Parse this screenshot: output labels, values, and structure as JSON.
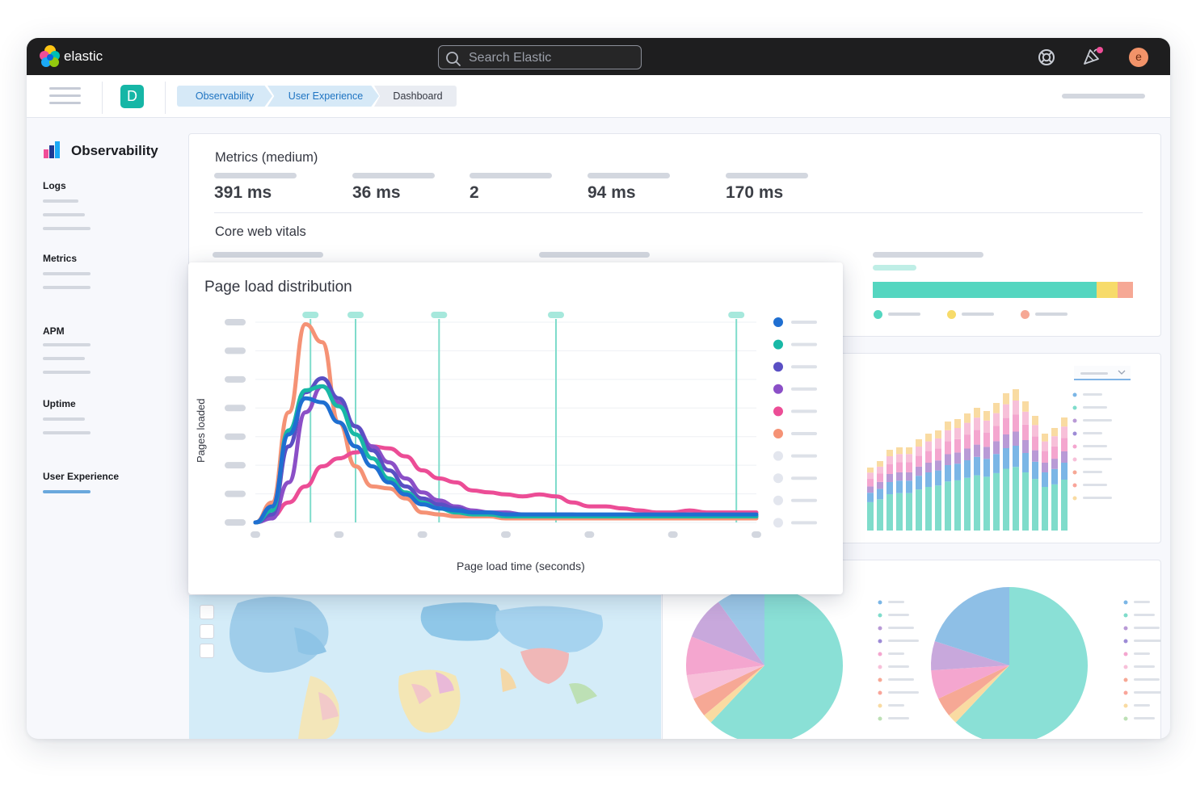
{
  "header": {
    "brand": "elastic",
    "search_placeholder": "Search Elastic",
    "avatar_initial": "e",
    "icons": [
      "elastic-logo-icon",
      "search-icon",
      "help-icon",
      "newsfeed-icon",
      "user-avatar"
    ]
  },
  "subnav": {
    "space_initial": "D",
    "breadcrumbs": [
      "Observability",
      "User Experience",
      "Dashboard"
    ]
  },
  "sidebar": {
    "title": "Observability",
    "sections": [
      {
        "label": "Logs"
      },
      {
        "label": "Metrics"
      },
      {
        "label": "APM"
      },
      {
        "label": "Uptime"
      },
      {
        "label": "User Experience",
        "active": true
      }
    ]
  },
  "metrics": {
    "title": "Metrics (medium)",
    "values": [
      "391 ms",
      "36 ms",
      "2",
      "94 ms",
      "170 ms"
    ]
  },
  "core_web_vitals": {
    "title": "Core web vitals",
    "bar_fractions": {
      "good": 0.86,
      "needs_improvement": 0.08,
      "poor": 0.06
    }
  },
  "page_load": {
    "title": "Page load distribution",
    "ylabel": "Pages loaded",
    "xlabel": "Page load time (seconds)"
  },
  "colors": {
    "teal": "#54d6c0",
    "blue": "#1f6fd1",
    "purple": "#5a4fc4",
    "violet": "#8b4fc7",
    "pink": "#ec4d96",
    "orange": "#f59275",
    "yellow": "#f7db6a",
    "salmon": "#f6a895"
  },
  "chart_data": {
    "type": "line",
    "title": "Page load distribution",
    "xlabel": "Page load time (seconds)",
    "ylabel": "Pages loaded",
    "x": [
      0,
      1,
      2,
      3,
      4,
      5,
      6,
      7,
      8,
      9,
      10,
      11,
      12,
      13,
      14,
      15,
      16,
      17,
      18,
      19,
      20,
      21,
      22,
      23,
      24,
      25,
      26,
      27,
      28,
      29,
      30
    ],
    "ylim": [
      0,
      100
    ],
    "series": [
      {
        "color": "#f59275",
        "values": [
          0,
          10,
          55,
          99,
          90,
          50,
          28,
          18,
          17,
          12,
          5,
          4,
          3,
          3,
          3,
          2,
          2,
          2,
          2,
          2,
          2,
          2,
          2,
          2,
          2,
          2,
          2,
          2,
          2,
          2,
          2
        ]
      },
      {
        "color": "#ec4d96",
        "values": [
          0,
          3,
          10,
          18,
          28,
          32,
          35,
          38,
          37,
          33,
          26,
          22,
          20,
          16,
          15,
          14,
          13,
          14,
          13,
          10,
          8,
          8,
          7,
          6,
          5,
          5,
          6,
          5,
          5,
          5,
          5
        ]
      },
      {
        "color": "#8b4fc7",
        "values": [
          0,
          2,
          20,
          55,
          68,
          60,
          48,
          38,
          30,
          22,
          15,
          11,
          8,
          6,
          5,
          5,
          4,
          4,
          4,
          4,
          3,
          3,
          3,
          3,
          3,
          3,
          3,
          3,
          3,
          3,
          3
        ]
      },
      {
        "color": "#5a4fc4",
        "values": [
          0,
          4,
          38,
          65,
          72,
          62,
          48,
          36,
          26,
          18,
          12,
          9,
          7,
          5,
          4,
          4,
          4,
          3,
          3,
          3,
          3,
          3,
          3,
          3,
          3,
          3,
          3,
          3,
          3,
          3,
          3
        ]
      },
      {
        "color": "#18b8a6",
        "values": [
          0,
          6,
          46,
          66,
          68,
          58,
          44,
          32,
          22,
          15,
          10,
          7,
          5,
          4,
          4,
          3,
          3,
          3,
          3,
          3,
          3,
          3,
          3,
          3,
          3,
          3,
          3,
          3,
          3,
          3,
          3
        ]
      },
      {
        "color": "#1f6fd1",
        "values": [
          0,
          8,
          44,
          62,
          60,
          50,
          38,
          28,
          20,
          14,
          9,
          7,
          6,
          5,
          5,
          4,
          4,
          4,
          4,
          4,
          4,
          4,
          4,
          4,
          4,
          4,
          4,
          4,
          4,
          4,
          4
        ]
      }
    ],
    "vertical_markers_x": [
      3.3,
      6,
      11,
      18,
      28.8
    ],
    "legend_placement": "right",
    "grid": true
  }
}
